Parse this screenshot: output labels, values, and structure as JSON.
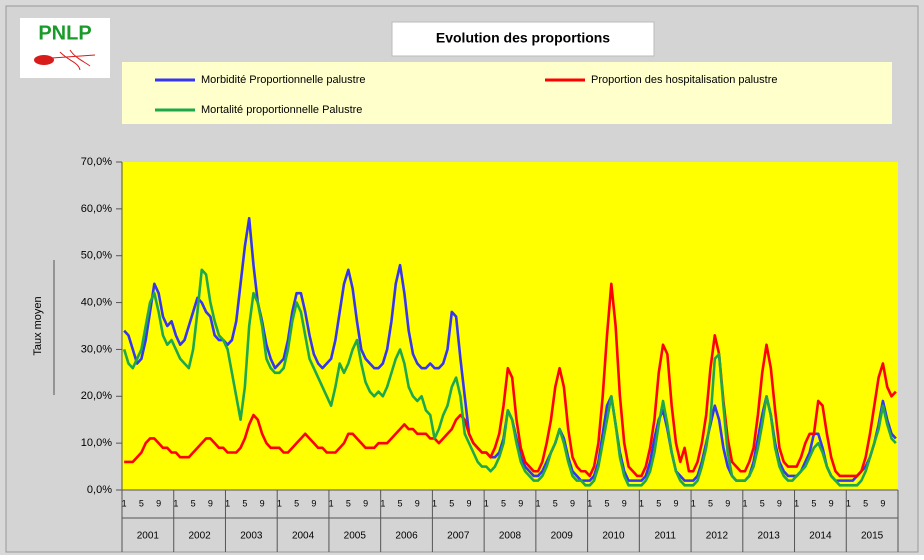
{
  "header": {
    "logo": "PNLP"
  },
  "chart_data": {
    "type": "line",
    "title": "Evolution des proportions",
    "ylabel": "Taux moyen",
    "legend": "top",
    "grid": false,
    "background": "#ffff00",
    "categories": [
      "1",
      null,
      null,
      null,
      "5",
      null,
      null,
      null,
      "9",
      null,
      null,
      null,
      "1",
      null,
      null,
      null,
      "5",
      null,
      null,
      null,
      "9",
      null,
      null,
      null,
      "1",
      null,
      null,
      null,
      "5",
      null,
      null,
      null,
      "9",
      null,
      null,
      null,
      "1",
      null,
      null,
      null,
      "5",
      null,
      null,
      null,
      "9",
      null,
      null,
      null,
      "1",
      null,
      null,
      null,
      "5",
      null,
      null,
      null,
      "9",
      null,
      null,
      null,
      "1",
      null,
      null,
      null,
      "5",
      null,
      null,
      null,
      "9",
      null,
      null,
      null,
      "1",
      null,
      null,
      null,
      "5",
      null,
      null,
      null,
      "9",
      null,
      null,
      null,
      "1",
      null,
      null,
      null,
      "5",
      null,
      null,
      null,
      "9",
      null,
      null,
      null,
      "1",
      null,
      null,
      null,
      "5",
      null,
      null,
      null,
      "9",
      null,
      null,
      null,
      "1",
      null,
      null,
      null,
      "5",
      null,
      null,
      null,
      "9",
      null,
      null,
      null,
      "1",
      null,
      null,
      null,
      "5",
      null,
      null,
      null,
      "9",
      null,
      null,
      null,
      "1",
      null,
      null,
      null,
      "5",
      null,
      null,
      null,
      "9",
      null,
      null,
      null,
      "1",
      null,
      null,
      null,
      "5",
      null,
      null,
      null,
      "9",
      null,
      null,
      null,
      "1",
      null,
      null,
      null,
      "5",
      null,
      null,
      null,
      "9",
      null,
      null,
      null,
      "1",
      null,
      null,
      null,
      "5",
      null,
      null,
      null,
      "9",
      null,
      null,
      null
    ],
    "groups": [
      "2001",
      "2002",
      "2003",
      "2004",
      "2005",
      "2006",
      "2007",
      "2008",
      "2009",
      "2010",
      "2011",
      "2012",
      "2013",
      "2014",
      "2015"
    ],
    "ylim": [
      0,
      70
    ],
    "yticks": [
      {
        "value": 0,
        "label": "0,0%"
      },
      {
        "value": 10,
        "label": "10,0%"
      },
      {
        "value": 20,
        "label": "20,0%"
      },
      {
        "value": 30,
        "label": "30,0%"
      },
      {
        "value": 40,
        "label": "40,0%"
      },
      {
        "value": 50,
        "label": "50,0%"
      },
      {
        "value": 60,
        "label": "60,0%"
      },
      {
        "value": 70,
        "label": "70,0%"
      }
    ],
    "series": [
      {
        "name": "Morbidité Proportionnelle palustre",
        "color": "#3636f0",
        "values": [
          34,
          33,
          30,
          27,
          28,
          32,
          38,
          44,
          42,
          37,
          35,
          36,
          33,
          31,
          32,
          35,
          38,
          41,
          40,
          38,
          37,
          33,
          32,
          32,
          31,
          32,
          36,
          44,
          52,
          58,
          48,
          40,
          36,
          31,
          28,
          26,
          27,
          28,
          32,
          38,
          42,
          42,
          38,
          33,
          29,
          27,
          26,
          27,
          28,
          32,
          38,
          44,
          47,
          43,
          36,
          30,
          28,
          27,
          26,
          26,
          27,
          30,
          36,
          44,
          48,
          42,
          34,
          29,
          27,
          26,
          26,
          27,
          26,
          26,
          27,
          30,
          38,
          37,
          28,
          20,
          12,
          10,
          9,
          8,
          8,
          7,
          7,
          8,
          11,
          17,
          15,
          11,
          7,
          5,
          4,
          3,
          3,
          4,
          6,
          8,
          10,
          13,
          11,
          7,
          4,
          3,
          2,
          2,
          2,
          3,
          6,
          12,
          18,
          20,
          14,
          8,
          4,
          2,
          2,
          2,
          2,
          3,
          6,
          11,
          15,
          17,
          13,
          8,
          4,
          3,
          2,
          2,
          2,
          3,
          6,
          10,
          14,
          18,
          15,
          9,
          5,
          3,
          2,
          2,
          2,
          3,
          6,
          11,
          16,
          20,
          16,
          10,
          6,
          4,
          3,
          3,
          3,
          4,
          6,
          8,
          12,
          12,
          9,
          5,
          3,
          2,
          2,
          2,
          2,
          2,
          3,
          4,
          5,
          7,
          10,
          14,
          19,
          15,
          12,
          11
        ]
      },
      {
        "name": "Proportion des hospitalisation palustre",
        "color": "#ff0000",
        "values": [
          6,
          6,
          6,
          7,
          8,
          10,
          11,
          11,
          10,
          9,
          9,
          8,
          8,
          7,
          7,
          7,
          8,
          9,
          10,
          11,
          11,
          10,
          9,
          9,
          8,
          8,
          8,
          9,
          11,
          14,
          16,
          15,
          12,
          10,
          9,
          9,
          9,
          8,
          8,
          9,
          10,
          11,
          12,
          11,
          10,
          9,
          9,
          8,
          8,
          8,
          9,
          10,
          12,
          12,
          11,
          10,
          9,
          9,
          9,
          10,
          10,
          10,
          11,
          12,
          13,
          14,
          13,
          13,
          12,
          12,
          12,
          11,
          11,
          10,
          11,
          12,
          13,
          15,
          16,
          15,
          12,
          10,
          9,
          8,
          8,
          7,
          9,
          12,
          18,
          26,
          24,
          15,
          9,
          6,
          5,
          4,
          4,
          6,
          10,
          15,
          22,
          26,
          22,
          13,
          7,
          5,
          4,
          4,
          3,
          5,
          10,
          20,
          33,
          44,
          35,
          20,
          10,
          5,
          4,
          3,
          3,
          5,
          9,
          15,
          25,
          31,
          29,
          18,
          10,
          6,
          9,
          4,
          4,
          6,
          10,
          16,
          26,
          33,
          29,
          19,
          11,
          6,
          5,
          4,
          4,
          6,
          9,
          16,
          25,
          31,
          26,
          17,
          9,
          6,
          5,
          5,
          5,
          7,
          10,
          12,
          12,
          19,
          18,
          12,
          7,
          4,
          3,
          3,
          3,
          3,
          3,
          4,
          7,
          12,
          18,
          24,
          27,
          22,
          20,
          21
        ]
      },
      {
        "name": "Mortalité proportionnelle Palustre",
        "color": "#1fa84a",
        "values": [
          30,
          27,
          26,
          28,
          30,
          35,
          40,
          42,
          38,
          33,
          31,
          32,
          30,
          28,
          27,
          26,
          30,
          38,
          47,
          46,
          40,
          36,
          33,
          32,
          30,
          25,
          20,
          15,
          22,
          35,
          42,
          40,
          35,
          28,
          26,
          25,
          25,
          26,
          30,
          36,
          40,
          38,
          33,
          28,
          26,
          24,
          22,
          20,
          18,
          22,
          27,
          25,
          27,
          30,
          32,
          27,
          23,
          21,
          20,
          21,
          20,
          22,
          25,
          28,
          30,
          27,
          22,
          20,
          19,
          20,
          17,
          16,
          11,
          13,
          16,
          18,
          22,
          24,
          20,
          12,
          10,
          8,
          6,
          5,
          5,
          4,
          5,
          7,
          10,
          17,
          15,
          10,
          6,
          4,
          3,
          2,
          2,
          3,
          5,
          8,
          10,
          13,
          10,
          6,
          3,
          2,
          2,
          1,
          1,
          2,
          5,
          10,
          15,
          20,
          14,
          7,
          3,
          1,
          1,
          1,
          1,
          2,
          4,
          8,
          14,
          19,
          14,
          8,
          4,
          2,
          1,
          1,
          1,
          2,
          5,
          9,
          15,
          28,
          29,
          18,
          8,
          3,
          2,
          2,
          2,
          3,
          5,
          9,
          14,
          20,
          16,
          9,
          5,
          3,
          2,
          2,
          3,
          4,
          5,
          7,
          9,
          10,
          8,
          5,
          3,
          2,
          1,
          1,
          1,
          1,
          1,
          2,
          4,
          7,
          10,
          13,
          18,
          14,
          11,
          10
        ]
      }
    ]
  }
}
